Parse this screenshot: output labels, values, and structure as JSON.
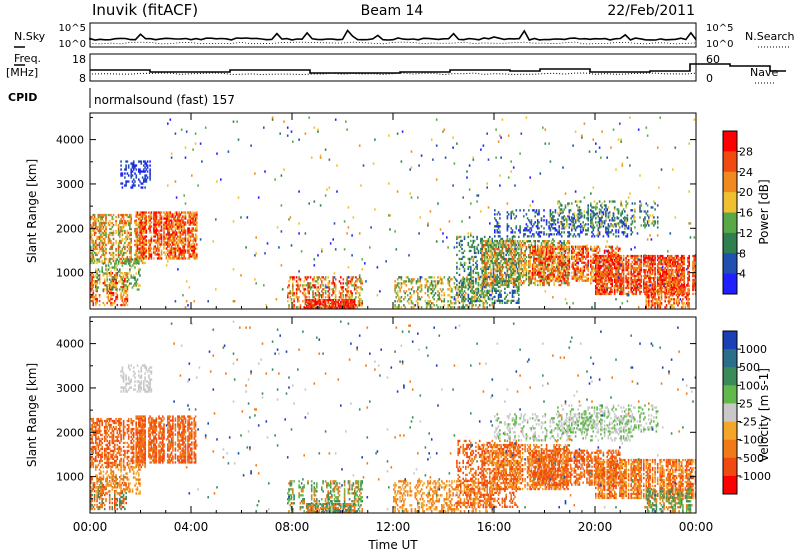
{
  "header": {
    "station": "Inuvik (fitACF)",
    "beam": "Beam 14",
    "date": "22/Feb/2011"
  },
  "aux_panels": {
    "nsky_label": "N.Sky",
    "nsky_ticks": [
      "10^5",
      "10^0"
    ],
    "nsearch_label": "N.Search",
    "nsearch_ticks": [
      "10^5",
      "10^0"
    ],
    "freq_label": "Freq.",
    "freq_unit": "[MHz]",
    "freq_ticks": [
      "18",
      "8"
    ],
    "nave_label": "Nave",
    "nave_ticks": [
      "60",
      "0"
    ],
    "cpid_label": "CPID",
    "cpid_text": "normalsound (fast) 157"
  },
  "colors": {
    "power": [
      "#1f1fff",
      "#2050b0",
      "#2f7f4f",
      "#59a848",
      "#f0c030",
      "#f08a20",
      "#f04a10",
      "#ff0000"
    ],
    "velocity": [
      "#1b3fb5",
      "#2a6e8a",
      "#3a8a5a",
      "#62b84a",
      "#c8c8c8",
      "#f3a62a",
      "#f07a18",
      "#f04a12",
      "#ff0000"
    ]
  },
  "chart_data": [
    {
      "type": "heatmap",
      "title": "Power",
      "ylabel": "Slant Range [km]",
      "ylim": [
        180,
        4600
      ],
      "yticks": [
        1000,
        2000,
        3000,
        4000
      ],
      "xlim": [
        0,
        24
      ],
      "xticks": [
        "00:00",
        "04:00",
        "08:00",
        "12:00",
        "16:00",
        "20:00",
        "00:00"
      ],
      "colorbar": {
        "label": "Power [dB]",
        "ticks": [
          "4",
          "8",
          "12",
          "16",
          "20",
          "24",
          "28"
        ],
        "range": [
          0,
          32
        ]
      }
    },
    {
      "type": "heatmap",
      "title": "Velocity",
      "ylabel": "Slant Range [km]",
      "xlabel": "Time UT",
      "ylim": [
        180,
        4600
      ],
      "yticks": [
        1000,
        2000,
        3000,
        4000
      ],
      "xlim": [
        0,
        24
      ],
      "xticks": [
        "00:00",
        "04:00",
        "08:00",
        "12:00",
        "16:00",
        "20:00",
        "00:00"
      ],
      "colorbar": {
        "label": "Velocity [m s-1]",
        "ticks": [
          "1000",
          "500",
          "100",
          "25",
          "-25",
          "-100",
          "-500",
          "-1000"
        ]
      }
    }
  ]
}
